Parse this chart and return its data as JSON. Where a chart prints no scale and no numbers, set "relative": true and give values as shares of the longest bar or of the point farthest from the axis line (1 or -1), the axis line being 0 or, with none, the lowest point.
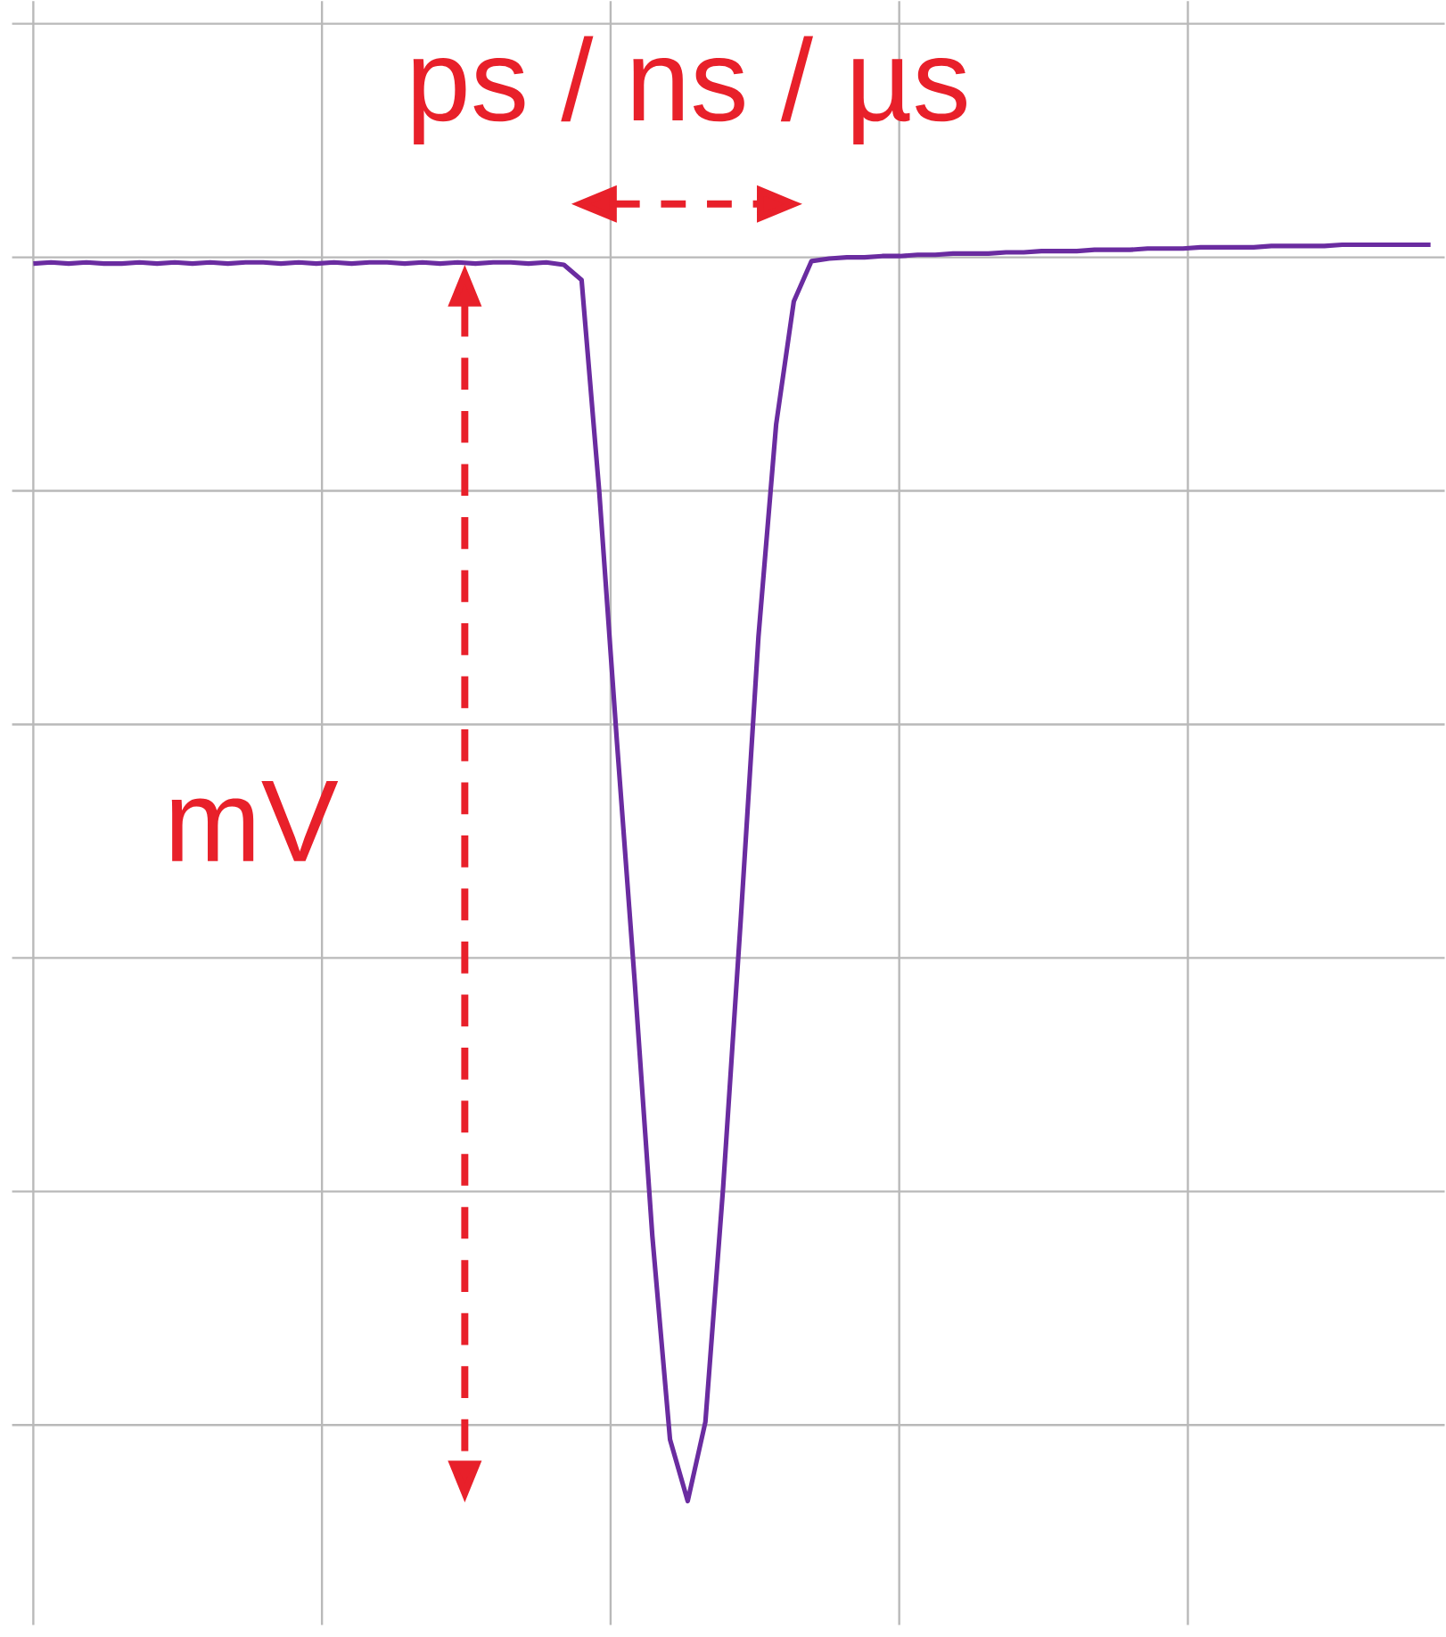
{
  "chart_data": {
    "type": "line",
    "relative": true,
    "grid": true,
    "tick_labels": false,
    "color": "#6a2ca0",
    "annotations": [
      "ps / ns / µs",
      "mV"
    ],
    "categories": [
      null,
      null,
      null,
      null,
      null,
      null,
      null,
      null,
      null,
      null,
      null,
      null,
      null,
      null,
      null,
      null,
      null,
      null,
      null,
      null,
      null,
      null,
      null,
      null,
      null,
      null,
      null,
      null,
      null,
      null,
      null,
      null,
      null,
      null,
      null,
      null,
      null,
      null,
      null,
      null,
      null,
      null,
      null,
      null,
      null,
      null,
      null,
      null,
      null,
      null,
      null,
      null,
      null,
      null,
      null,
      null,
      null,
      null,
      null,
      null,
      null,
      null,
      null,
      null,
      null,
      null,
      null,
      null,
      null,
      null,
      null,
      null,
      null,
      null,
      null,
      null,
      null,
      null,
      null,
      null
    ],
    "values": [
      0.985,
      0.986,
      0.985,
      0.986,
      0.985,
      0.985,
      0.986,
      0.985,
      0.986,
      0.985,
      0.986,
      0.985,
      0.986,
      0.986,
      0.985,
      0.986,
      0.985,
      0.986,
      0.985,
      0.986,
      0.986,
      0.985,
      0.986,
      0.985,
      0.986,
      0.985,
      0.986,
      0.986,
      0.985,
      0.986,
      0.984,
      0.972,
      0.803,
      0.604,
      0.414,
      0.211,
      0.049,
      0,
      0.063,
      0.249,
      0.463,
      0.688,
      0.857,
      0.955,
      0.987,
      0.989,
      0.99,
      0.99,
      0.991,
      0.991,
      0.992,
      0.992,
      0.993,
      0.993,
      0.993,
      0.994,
      0.994,
      0.995,
      0.995,
      0.995,
      0.996,
      0.996,
      0.996,
      0.997,
      0.997,
      0.997,
      0.998,
      0.998,
      0.998,
      0.998,
      0.999,
      0.999,
      0.999,
      0.999,
      1,
      1,
      1,
      1,
      1,
      1
    ]
  }
}
